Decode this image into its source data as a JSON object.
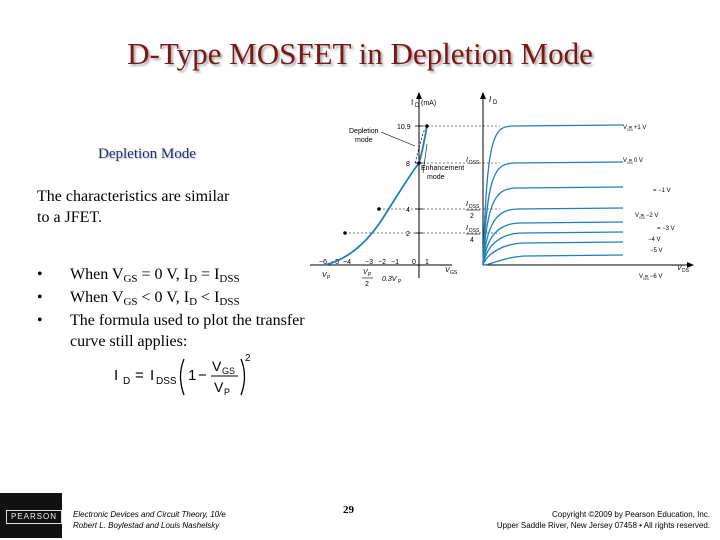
{
  "slide": {
    "title": "D-Type MOSFET in Depletion Mode",
    "subtitle": "Depletion Mode",
    "intro_line1": "The characteristics are similar",
    "intro_line2": "to a JFET.",
    "bullets": [
      {
        "dot": "•",
        "parts": [
          "When V",
          "GS",
          " = 0 V, I",
          "D",
          " = I",
          "DSS"
        ]
      },
      {
        "dot": "•",
        "parts": [
          "When V",
          "GS",
          " < 0 V, I",
          "D",
          " < I",
          "DSS"
        ]
      },
      {
        "dot": "•",
        "text_line1": "The formula used to plot the transfer",
        "text_line2": "curve still applies:"
      }
    ]
  },
  "formula": {
    "lhs": "I",
    "lhs_sub": "D",
    "eq": "=",
    "coef": "I",
    "coef_sub": "DSS",
    "one": "1",
    "minus": "−",
    "num": "V",
    "num_sub": "GS",
    "den": "V",
    "den_sub": "P",
    "exp": "2"
  },
  "figure": {
    "transfer": {
      "axis_label": "I",
      "axis_label_sub": "D",
      "axis_unit": "(mA)",
      "left_annotation_1": "Depletion",
      "left_annotation_2": "mode",
      "right_annotation_1": "Enhancement",
      "right_annotation_2": "mode",
      "y_ticks": [
        "10.9",
        "8",
        "4",
        "2"
      ],
      "x_ticks": [
        "−6",
        "−5",
        "−4",
        "−3",
        "−2",
        "−1",
        "0",
        "1"
      ],
      "vp_label": "V",
      "vp_sub": "P",
      "half_vp_num": "V",
      "half_vp_sub": "P",
      "half_vp_den": "2",
      "point3_label": "0.3V",
      "point3_sub": "P",
      "vgs_label": "V",
      "vgs_sub": "GS"
    },
    "drain": {
      "axis_label": "I",
      "axis_label_sub": "D",
      "idss_label": "I",
      "idss_sub": "DSS",
      "idss2_label": "I",
      "idss2_sub": "DSS",
      "idss2_den": "2",
      "idss4_label": "I",
      "idss4_sub": "DSS",
      "idss4_den": "4",
      "vds_label": "V",
      "vds_sub": "DS",
      "curve_labels": [
        "V  = +1 V",
        "V  = 0 V",
        "= −1 V",
        "V  = −2 V",
        "= −3 V",
        "−4 V",
        "−5 V",
        "V  = −6 V"
      ],
      "curve_subs": [
        "GS",
        "GS",
        "",
        "GS",
        "",
        "",
        "",
        "GS"
      ],
      "curve_color": "#1f7fb8"
    }
  },
  "footer": {
    "logo_text": "PEARSON",
    "book_line1": "Electronic Devices and Circuit Theory, 10/e",
    "book_line2": "Robert L. Boylestad and Louis Nashelsky",
    "page": "29",
    "copyright_line1": "Copyright ©2009 by Pearson Education, Inc.",
    "copyright_line2": "Upper Saddle River, New Jersey 07458 • All rights reserved."
  }
}
